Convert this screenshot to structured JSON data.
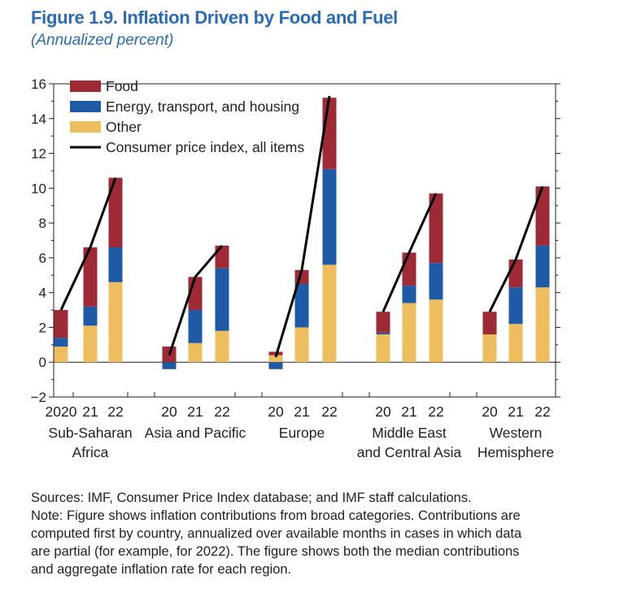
{
  "figure": {
    "title": "Figure 1.9.  Inflation Driven by Food and Fuel",
    "subtitle": "(Annualized percent)"
  },
  "colors": {
    "food": "#9e2a35",
    "energy": "#1f5aa6",
    "other": "#eebd5d",
    "cpi": "#000000"
  },
  "chart_data": {
    "type": "bar",
    "stacked": true,
    "title": "",
    "xlabel": "",
    "ylabel": "",
    "ylim": [
      -2,
      16
    ],
    "yticks": [
      -2,
      0,
      2,
      4,
      6,
      8,
      10,
      12,
      14,
      16
    ],
    "legend_position": "top-left",
    "legend": [
      "Food",
      "Energy, transport, and housing",
      "Other",
      "Consumer price index, all items"
    ],
    "groups": [
      {
        "region": [
          "Sub-Saharan",
          "Africa"
        ],
        "years": [
          "2020",
          "21",
          "22"
        ],
        "food": [
          1.6,
          3.4,
          4.0
        ],
        "energy": [
          0.5,
          1.1,
          2.0
        ],
        "other": [
          0.9,
          2.1,
          4.6
        ],
        "cpi": [
          3.0,
          6.6,
          10.6
        ]
      },
      {
        "region": [
          "Asia and Pacific"
        ],
        "years": [
          "20",
          "21",
          "22"
        ],
        "food": [
          0.9,
          1.9,
          1.3
        ],
        "energy": [
          -0.4,
          1.9,
          3.6
        ],
        "other": [
          0.0,
          1.1,
          1.8
        ],
        "cpi": [
          0.4,
          4.9,
          6.7
        ]
      },
      {
        "region": [
          "Europe"
        ],
        "years": [
          "20",
          "21",
          "22"
        ],
        "food": [
          0.2,
          0.8,
          4.1
        ],
        "energy": [
          -0.4,
          2.5,
          5.5
        ],
        "other": [
          0.4,
          2.0,
          5.6
        ],
        "cpi": [
          0.3,
          5.3,
          15.3
        ]
      },
      {
        "region": [
          "Middle East",
          "and Central Asia"
        ],
        "years": [
          "20",
          "21",
          "22"
        ],
        "food": [
          1.2,
          1.9,
          4.0
        ],
        "energy": [
          0.1,
          1.0,
          2.1
        ],
        "other": [
          1.6,
          3.4,
          3.6
        ],
        "cpi": [
          2.9,
          6.3,
          9.7
        ]
      },
      {
        "region": [
          "Western",
          "Hemisphere"
        ],
        "years": [
          "20",
          "21",
          "22"
        ],
        "food": [
          1.3,
          1.6,
          3.4
        ],
        "energy": [
          0.0,
          2.1,
          2.4
        ],
        "other": [
          1.6,
          2.2,
          4.3
        ],
        "cpi": [
          2.9,
          5.9,
          10.1
        ]
      }
    ]
  },
  "notes": {
    "sources": "Sources: IMF, Consumer Price Index database; and IMF staff calculations.",
    "note_lines": [
      "Note: Figure shows inflation contributions from broad categories. Contributions are",
      "computed first by country, annualized over available months in cases in which data",
      "are partial (for example, for 2022). The figure shows both the median contributions",
      "and aggregate inflation rate for each region."
    ]
  }
}
